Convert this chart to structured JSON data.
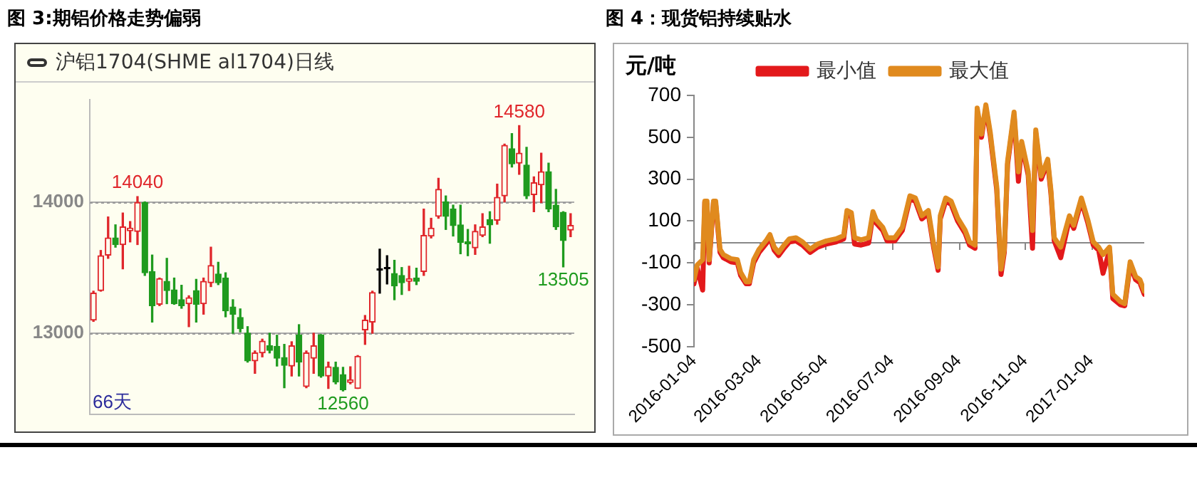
{
  "chart_data": [
    {
      "type": "candlestick",
      "title": "图 3:期铝价格走势偏弱",
      "subtitle": "沪铝1704(SHME al1704)日线",
      "categories": [
        null,
        null,
        null,
        null,
        null,
        null,
        null,
        null,
        null,
        null,
        null,
        null,
        null,
        null,
        null,
        null,
        null,
        null,
        null,
        null,
        null,
        null,
        null,
        null,
        null,
        null,
        null,
        null,
        null,
        null,
        null,
        null,
        null,
        null,
        null,
        null,
        null,
        null,
        null,
        null,
        null,
        null,
        null,
        null,
        null,
        null,
        null,
        null,
        null,
        null,
        null,
        null,
        null,
        null,
        null,
        null,
        null,
        null,
        null,
        null,
        null,
        null,
        null,
        null,
        null,
        null
      ],
      "ohlc": [
        [
          13100,
          13320,
          13090,
          13305
        ],
        [
          13325,
          13630,
          13320,
          13590
        ],
        [
          13595,
          13885,
          13570,
          13725
        ],
        [
          13725,
          13825,
          13655,
          13675
        ],
        [
          13675,
          13915,
          13490,
          13810
        ],
        [
          13780,
          13850,
          13695,
          13800
        ],
        [
          13775,
          14040,
          13675,
          13995
        ],
        [
          13995,
          14000,
          13440,
          13460
        ],
        [
          13470,
          13595,
          13085,
          13210
        ],
        [
          13220,
          13420,
          13210,
          13415
        ],
        [
          13395,
          13570,
          13225,
          13325
        ],
        [
          13330,
          13420,
          13220,
          13225
        ],
        [
          13255,
          13365,
          13190,
          13210
        ],
        [
          13225,
          13285,
          13050,
          13270
        ],
        [
          13325,
          13410,
          13085,
          13220
        ],
        [
          13225,
          13420,
          13145,
          13395
        ],
        [
          13385,
          13655,
          13355,
          13515
        ],
        [
          13450,
          13540,
          13370,
          13385
        ],
        [
          13420,
          13460,
          13125,
          13170
        ],
        [
          13200,
          13255,
          13000,
          13145
        ],
        [
          13120,
          13185,
          13010,
          13035
        ],
        [
          13000,
          13050,
          12780,
          12790
        ],
        [
          12790,
          12865,
          12695,
          12850
        ],
        [
          12850,
          12955,
          12820,
          12940
        ],
        [
          12905,
          13000,
          12850,
          12870
        ],
        [
          12900,
          12985,
          12750,
          12810
        ],
        [
          12815,
          12915,
          12585,
          12755
        ],
        [
          12750,
          12935,
          12675,
          12905
        ],
        [
          12985,
          13065,
          12675,
          12780
        ],
        [
          12595,
          12865,
          12585,
          12850
        ],
        [
          12810,
          13000,
          12695,
          12905
        ],
        [
          12985,
          12990,
          12665,
          12675
        ],
        [
          12675,
          12780,
          12580,
          12745
        ],
        [
          12740,
          12780,
          12615,
          12630
        ],
        [
          12685,
          12740,
          12560,
          12570
        ],
        [
          12625,
          12745,
          12615,
          12645
        ],
        [
          12580,
          12830,
          12580,
          12825
        ],
        [
          13025,
          13135,
          12915,
          13100
        ],
        [
          13085,
          13320,
          13000,
          13310
        ],
        [
          13480,
          13640,
          13305,
          13480
        ],
        [
          13490,
          13590,
          13375,
          13490
        ],
        [
          13455,
          13555,
          13255,
          13360
        ],
        [
          13440,
          13500,
          13295,
          13385
        ],
        [
          13395,
          13510,
          13325,
          13415
        ],
        [
          13420,
          13495,
          13370,
          13395
        ],
        [
          13470,
          13945,
          13440,
          13745
        ],
        [
          13740,
          13875,
          13725,
          13800
        ],
        [
          13890,
          14180,
          13875,
          14095
        ],
        [
          14000,
          14045,
          13790,
          13890
        ],
        [
          13945,
          13975,
          13740,
          13820
        ],
        [
          13825,
          13975,
          13605,
          13690
        ],
        [
          13695,
          13790,
          13590,
          13680
        ],
        [
          13650,
          13825,
          13600,
          13775
        ],
        [
          13745,
          13910,
          13735,
          13810
        ],
        [
          13865,
          13925,
          13685,
          13825
        ],
        [
          13860,
          14135,
          13830,
          14035
        ],
        [
          14045,
          14440,
          14000,
          14430
        ],
        [
          14405,
          14520,
          14265,
          14290
        ],
        [
          14295,
          14580,
          14210,
          14370
        ],
        [
          14280,
          14415,
          14025,
          14045
        ],
        [
          14055,
          14190,
          13925,
          14145
        ],
        [
          14130,
          14370,
          13995,
          14230
        ],
        [
          14230,
          14295,
          13925,
          13945
        ],
        [
          13975,
          14095,
          13790,
          13810
        ],
        [
          13920,
          13925,
          13505,
          13705
        ],
        [
          13785,
          13910,
          13735,
          13820
        ]
      ],
      "ylim": [
        12380,
        14780
      ],
      "yticks": [
        13000,
        14000
      ],
      "grid": "y",
      "tick_labels": "y",
      "annotations": [
        {
          "text": "14040",
          "y": 14040
        },
        {
          "text": "14580",
          "y": 14580
        },
        {
          "text": "12560",
          "y": 12560
        },
        {
          "text": "13505",
          "y": 13505
        },
        "66天"
      ]
    },
    {
      "type": "line",
      "title": "图 4：现货铝持续贴水",
      "ylabel": "元/吨",
      "x": [
        "2016-01-04",
        "2016-01-07",
        "2016-01-12",
        "2016-01-14",
        "2016-01-16",
        "2016-01-18",
        "2016-01-22",
        "2016-01-24",
        "2016-01-28",
        "2016-01-31",
        "2016-02-07",
        "2016-02-13",
        "2016-02-16",
        "2016-02-21",
        "2016-02-24",
        "2016-02-28",
        "2016-03-04",
        "2016-03-11",
        "2016-03-14",
        "2016-03-18",
        "2016-03-22",
        "2016-03-27",
        "2016-04-01",
        "2016-04-07",
        "2016-04-13",
        "2016-04-20",
        "2016-04-27",
        "2016-05-05",
        "2016-05-14",
        "2016-05-21",
        "2016-05-24",
        "2016-05-28",
        "2016-05-31",
        "2016-06-06",
        "2016-06-13",
        "2016-06-17",
        "2016-06-20",
        "2016-06-26",
        "2016-06-30",
        "2016-07-07",
        "2016-07-14",
        "2016-07-21",
        "2016-07-26",
        "2016-08-01",
        "2016-08-07",
        "2016-08-12",
        "2016-08-16",
        "2016-08-18",
        "2016-08-23",
        "2016-08-28",
        "2016-09-03",
        "2016-09-10",
        "2016-09-14",
        "2016-09-19",
        "2016-09-21",
        "2016-09-25",
        "2016-09-29",
        "2016-10-03",
        "2016-10-09",
        "2016-10-13",
        "2016-10-16",
        "2016-10-19",
        "2016-10-25",
        "2016-10-29",
        "2016-11-01",
        "2016-11-07",
        "2016-11-11",
        "2016-11-14",
        "2016-11-19",
        "2016-11-25",
        "2016-11-28",
        "2016-12-01",
        "2016-12-07",
        "2016-12-15",
        "2016-12-19",
        "2016-12-26",
        "2017-01-01",
        "2017-01-06",
        "2017-01-11",
        "2017-01-15",
        "2017-01-21",
        "2017-01-24",
        "2017-01-31",
        "2017-02-04",
        "2017-02-09",
        "2017-02-14",
        "2017-02-18",
        "2017-02-22"
      ],
      "series": [
        {
          "name": "最小值",
          "color": "#e3191b",
          "values": [
            -200,
            -125,
            -230,
            190,
            180,
            -100,
            190,
            180,
            -50,
            -75,
            -95,
            -100,
            -160,
            -200,
            -200,
            -100,
            -50,
            -5,
            20,
            -40,
            -65,
            -30,
            0,
            5,
            -15,
            -50,
            -25,
            -10,
            0,
            15,
            135,
            125,
            -10,
            -15,
            -5,
            130,
            90,
            55,
            5,
            5,
            55,
            205,
            195,
            110,
            135,
            -30,
            -135,
            110,
            195,
            180,
            100,
            40,
            -15,
            -30,
            625,
            500,
            640,
            510,
            250,
            -155,
            -50,
            370,
            605,
            290,
            465,
            320,
            -30,
            520,
            300,
            380,
            230,
            5,
            -75,
            110,
            65,
            195,
            90,
            -15,
            -40,
            -150,
            -40,
            -270,
            -300,
            -305,
            -110,
            -180,
            -195,
            -250
          ]
        },
        {
          "name": "最大值",
          "color": "#e08a1e",
          "values": [
            -180,
            -110,
            -85,
            195,
            195,
            -85,
            195,
            195,
            -35,
            -60,
            -80,
            -85,
            -145,
            -190,
            -190,
            -85,
            -35,
            10,
            35,
            -25,
            -50,
            -15,
            15,
            20,
            0,
            -35,
            -10,
            5,
            15,
            30,
            150,
            140,
            20,
            10,
            20,
            145,
            105,
            70,
            20,
            20,
            70,
            220,
            210,
            125,
            150,
            -15,
            -120,
            125,
            210,
            195,
            115,
            55,
            0,
            -15,
            640,
            515,
            655,
            525,
            265,
            -130,
            -35,
            385,
            620,
            335,
            480,
            335,
            55,
            535,
            315,
            395,
            245,
            20,
            -25,
            125,
            80,
            210,
            105,
            0,
            -25,
            -60,
            -25,
            -250,
            -285,
            -295,
            -95,
            -165,
            -180,
            -235
          ]
        }
      ],
      "xlim": [
        "2016-01-04",
        "2017-02-22"
      ],
      "xticks": [
        "2016-01-04",
        "2016-03-04",
        "2016-05-04",
        "2016-07-04",
        "2016-09-04",
        "2016-11-04",
        "2017-01-04"
      ],
      "ylim": [
        -500,
        700
      ],
      "yticks": [
        -500,
        -300,
        -100,
        100,
        300,
        500,
        700
      ],
      "legend": "top"
    }
  ]
}
